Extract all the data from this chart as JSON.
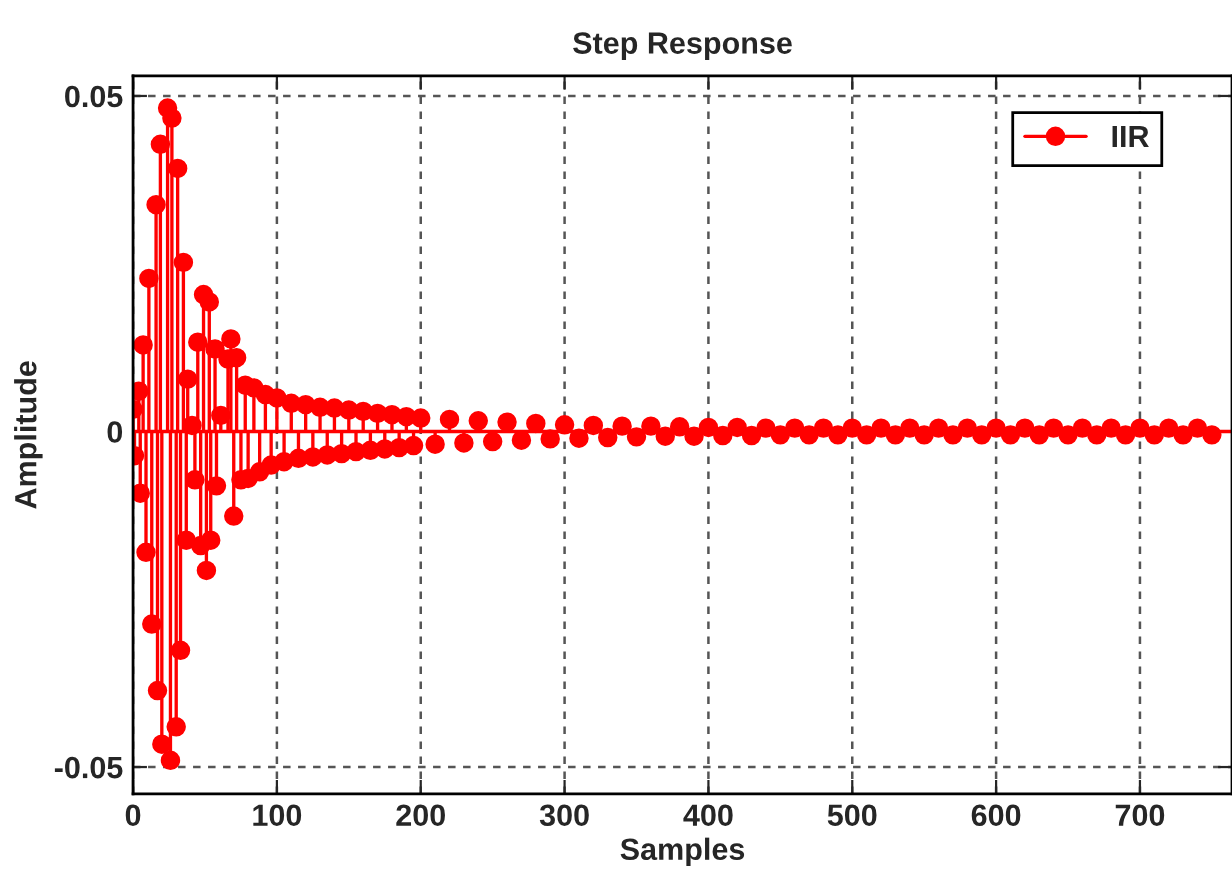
{
  "chart_data": {
    "type": "lollipop",
    "title": "Step Response",
    "xlabel": "Samples",
    "ylabel": "Amplitude",
    "xlim": [
      0,
      764
    ],
    "ylim": [
      -0.054,
      0.053
    ],
    "xticks": [
      0,
      100,
      200,
      300,
      400,
      500,
      600,
      700
    ],
    "yticks": [
      -0.05,
      0,
      0.05
    ],
    "ref_lines": [
      {
        "axis": "y",
        "value": 0,
        "color": "#ff0000"
      }
    ],
    "grid": true,
    "legend": "top right",
    "marker": "circle",
    "series": [
      {
        "name": "IIR",
        "color": "#ff0000",
        "x": [
          0,
          1,
          4,
          5,
          7,
          9,
          11,
          13,
          16,
          17,
          19,
          20,
          24,
          26,
          27,
          30,
          31,
          33,
          35,
          37,
          38,
          41,
          43,
          45,
          47,
          49,
          51,
          53,
          54,
          57,
          58,
          61,
          66,
          68,
          70,
          72,
          75,
          78,
          80,
          84,
          88,
          92,
          96,
          100,
          105,
          110,
          115,
          120,
          125,
          130,
          135,
          140,
          145,
          150,
          155,
          160,
          165,
          170,
          175,
          180,
          185,
          190,
          195,
          200,
          210,
          220,
          230,
          240,
          250,
          260,
          270,
          280,
          290,
          300,
          310,
          320,
          330,
          340,
          350,
          360,
          370,
          380,
          390,
          400,
          410,
          420,
          430,
          440,
          450,
          460,
          470,
          480,
          490,
          500,
          510,
          520,
          530,
          540,
          550,
          560,
          570,
          580,
          590,
          600,
          610,
          620,
          630,
          640,
          650,
          660,
          670,
          680,
          690,
          700,
          710,
          720,
          730,
          740,
          750
        ],
        "values": [
          0.0033,
          -0.0036,
          0.006,
          -0.0092,
          0.0129,
          -0.018,
          0.0228,
          -0.0287,
          0.0338,
          -0.0386,
          0.0428,
          -0.0466,
          0.0482,
          -0.049,
          0.0467,
          -0.044,
          0.0392,
          -0.0326,
          0.0252,
          -0.0162,
          0.0078,
          0.0009,
          -0.0072,
          0.0133,
          -0.017,
          0.0204,
          -0.0207,
          0.0193,
          -0.0162,
          0.0123,
          -0.0081,
          0.0024,
          0.0108,
          0.0138,
          -0.0126,
          0.011,
          -0.0072,
          0.0069,
          -0.007,
          0.0065,
          -0.006,
          0.0055,
          -0.005,
          0.005,
          -0.0045,
          0.0042,
          -0.004,
          0.004,
          -0.0038,
          0.0036,
          -0.0035,
          0.0035,
          -0.0033,
          0.0032,
          -0.003,
          0.003,
          -0.0028,
          0.0027,
          -0.0026,
          0.0025,
          -0.0024,
          0.0022,
          -0.0021,
          0.002,
          -0.0019,
          0.0018,
          -0.0017,
          0.0016,
          -0.0015,
          0.0014,
          -0.0013,
          0.0012,
          -0.0011,
          0.001,
          -0.001,
          0.0009,
          -0.0009,
          0.0008,
          -0.0008,
          0.0008,
          -0.0007,
          0.0007,
          -0.0007,
          0.0006,
          -0.0006,
          0.0006,
          -0.0006,
          0.0005,
          -0.0005,
          0.0005,
          -0.0005,
          0.0005,
          -0.0005,
          0.0005,
          -0.0005,
          0.0005,
          -0.0005,
          0.0005,
          -0.0005,
          0.0005,
          -0.0005,
          0.0005,
          -0.0005,
          0.0005,
          -0.0005,
          0.0005,
          -0.0005,
          0.0005,
          -0.0005,
          0.0005,
          -0.0005,
          0.0005,
          -0.0005,
          0.0005,
          -0.0005,
          0.0005,
          -0.0005,
          0.0005,
          -0.0005
        ]
      }
    ]
  }
}
